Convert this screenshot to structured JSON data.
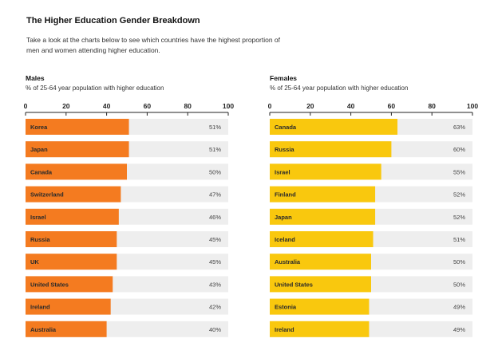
{
  "header": {
    "title": "The Higher Education Gender Breakdown",
    "subtitle": "Take a look at the charts below to see which countries have the highest proportion of men and women attending higher education."
  },
  "colors": {
    "males_bar": "#F47B20",
    "females_bar": "#F9C80E",
    "track": "#EEEEEE",
    "axis": "#222222"
  },
  "chart_data": [
    {
      "type": "bar",
      "orientation": "horizontal",
      "title": "Males",
      "xlabel": "% of 25-64 year population with higher education",
      "xlim": [
        0,
        100
      ],
      "ticks": [
        0,
        20,
        40,
        60,
        80,
        100
      ],
      "categories": [
        "Korea",
        "Japan",
        "Canada",
        "Switzerland",
        "Israel",
        "Russia",
        "UK",
        "United States",
        "Ireland",
        "Australia"
      ],
      "values": [
        51,
        51,
        50,
        47,
        46,
        45,
        45,
        43,
        42,
        40
      ],
      "value_labels": [
        "51%",
        "51%",
        "50%",
        "47%",
        "46%",
        "45%",
        "45%",
        "43%",
        "42%",
        "40%"
      ]
    },
    {
      "type": "bar",
      "orientation": "horizontal",
      "title": "Females",
      "xlabel": "% of 25-64 year population with higher education",
      "xlim": [
        0,
        100
      ],
      "ticks": [
        0,
        20,
        40,
        60,
        80,
        100
      ],
      "categories": [
        "Canada",
        "Russia",
        "Israel",
        "Finland",
        "Japan",
        "Iceland",
        "Australia",
        "United States",
        "Estonia",
        "Ireland"
      ],
      "values": [
        63,
        60,
        55,
        52,
        52,
        51,
        50,
        50,
        49,
        49
      ],
      "value_labels": [
        "63%",
        "60%",
        "55%",
        "52%",
        "52%",
        "51%",
        "50%",
        "50%",
        "49%",
        "49%"
      ]
    }
  ]
}
